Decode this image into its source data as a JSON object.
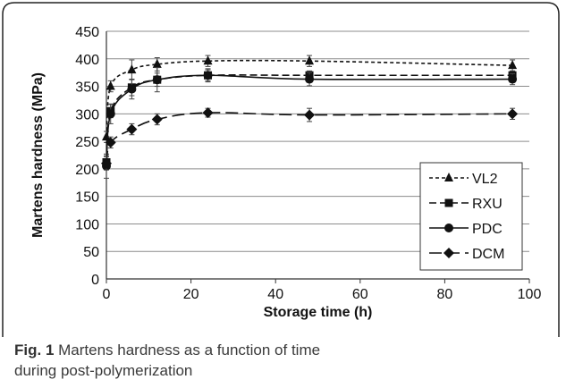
{
  "caption": {
    "label": "Fig. 1",
    "text": "Martens hardness as a function of time during post-polymerization"
  },
  "chart_data": {
    "type": "line",
    "xlabel": "Storage time (h)",
    "ylabel": "Martens hardness (MPa)",
    "xlim": [
      0,
      100
    ],
    "ylim": [
      0,
      450
    ],
    "xticks": [
      0,
      20,
      40,
      60,
      80,
      100
    ],
    "yticks": [
      0,
      50,
      100,
      150,
      200,
      250,
      300,
      350,
      400,
      450
    ],
    "grid": "horizontal",
    "legend_position": "bottom-right",
    "series": [
      {
        "name": "VL2",
        "marker": "triangle",
        "dash": "short-dash",
        "x": [
          0,
          1,
          6,
          12,
          24,
          48,
          96
        ],
        "y": [
          258,
          350,
          380,
          390,
          396,
          396,
          388
        ],
        "err": [
          10,
          10,
          18,
          12,
          10,
          10,
          10
        ]
      },
      {
        "name": "RXU",
        "marker": "square",
        "dash": "dash",
        "x": [
          0,
          1,
          6,
          12,
          24,
          48,
          96
        ],
        "y": [
          212,
          305,
          348,
          362,
          370,
          370,
          370
        ],
        "err": [
          12,
          12,
          15,
          12,
          10,
          8,
          8
        ]
      },
      {
        "name": "PDC",
        "marker": "circle",
        "dash": "solid",
        "x": [
          0,
          1,
          6,
          12,
          24,
          48,
          96
        ],
        "y": [
          205,
          300,
          345,
          362,
          370,
          363,
          363
        ],
        "err": [
          22,
          18,
          18,
          22,
          12,
          12,
          10
        ]
      },
      {
        "name": "DCM",
        "marker": "diamond",
        "dash": "long-dash",
        "x": [
          0,
          1,
          6,
          12,
          24,
          48,
          96
        ],
        "y": [
          210,
          248,
          272,
          290,
          302,
          298,
          300
        ],
        "err": [
          12,
          10,
          10,
          10,
          8,
          12,
          10
        ]
      }
    ]
  }
}
